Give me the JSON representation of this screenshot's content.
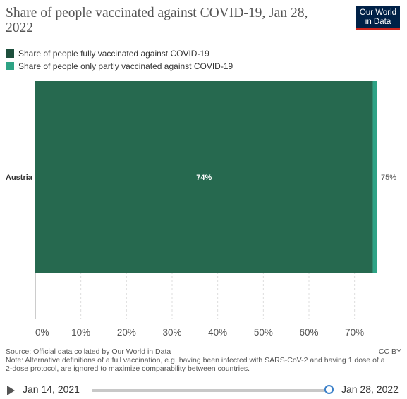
{
  "header": {
    "title": "Share of people vaccinated against COVID-19, Jan 28, 2022",
    "logo_line1": "Our World",
    "logo_line2": "in Data"
  },
  "colors": {
    "fully": "#26694f",
    "partly": "#2ea385",
    "logo_bg": "#002147",
    "logo_accent": "#ce261e"
  },
  "chart_data": {
    "type": "bar",
    "orientation": "horizontal",
    "stacked": true,
    "categories": [
      "Austria"
    ],
    "series": [
      {
        "name": "Share of people fully vaccinated against COVID-19",
        "values": [
          74
        ]
      },
      {
        "name": "Share of people only partly vaccinated against COVID-19",
        "values": [
          1
        ]
      }
    ],
    "bar_labels": [
      "74%"
    ],
    "total_labels": [
      "75%"
    ],
    "xlim": [
      0,
      75
    ],
    "xticks": [
      0,
      10,
      20,
      30,
      40,
      50,
      60,
      70
    ],
    "xtick_labels": [
      "0%",
      "10%",
      "20%",
      "30%",
      "40%",
      "50%",
      "60%",
      "70%"
    ],
    "grid": true,
    "legend_position": "top-left"
  },
  "footer": {
    "source": "Source: Official data collated by Our World in Data",
    "note": "Note: Alternative definitions of a full vaccination, e.g. having been infected with SARS-CoV-2 and having 1 dose of a 2-dose protocol, are ignored to maximize comparability between countries.",
    "license": "CC BY"
  },
  "timeline": {
    "start_label": "Jan 14, 2021",
    "end_label": "Jan 28, 2022",
    "position": 1
  }
}
